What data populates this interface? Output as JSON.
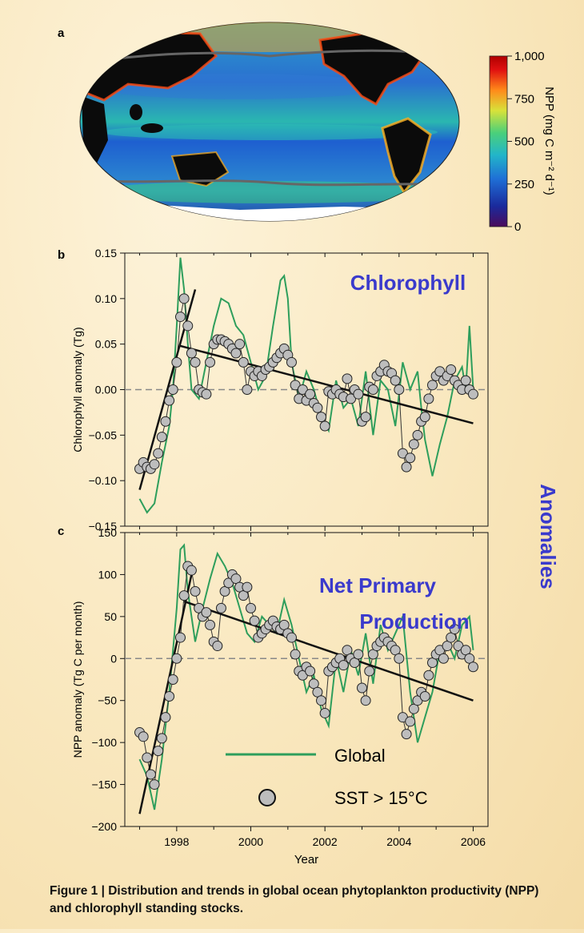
{
  "colors": {
    "global_line": "#2e9e5c",
    "sst_marker_fill": "#bdbdbd",
    "trend_line": "#111111",
    "zero_line": "#888888",
    "overlay_text": "#3a3acc"
  },
  "panel_a": {
    "letter": "a",
    "colorbar": {
      "label": "NPP (mg C m⁻² d⁻¹)",
      "ticks": [
        "1,000",
        "750",
        "500",
        "250",
        "0"
      ],
      "tick_values": [
        1000,
        750,
        500,
        250,
        0
      ],
      "range": [
        0,
        1000
      ],
      "colors": [
        "#4b0a5b",
        "#1a2a9c",
        "#1f6fd6",
        "#22b5c9",
        "#4bd07a",
        "#d8e23a",
        "#ff8a1a",
        "#e01010",
        "#b00000"
      ]
    }
  },
  "overlay": {
    "chlorophyll": "Chlorophyll",
    "npp_line1": "Net Primary",
    "npp_line2": "Production",
    "anomalies": "Anomalies"
  },
  "legend": {
    "global": "Global",
    "sst": "SST > 15°C"
  },
  "caption": {
    "bold": "Figure 1 | Distribution and trends in global ocean phytoplankton productivity (NPP) and chlorophyll standing stocks."
  },
  "chart_data": [
    {
      "type": "line",
      "panel": "b",
      "ylabel": "Chlorophyll anomaly (Tg)",
      "xlim": [
        1996.6,
        2006.4
      ],
      "ylim": [
        -0.15,
        0.15
      ],
      "yticks": [
        0.15,
        0.1,
        0.05,
        0.0,
        -0.05,
        -0.1,
        -0.15
      ],
      "ytick_labels": [
        "0.15",
        "0.10",
        "0.05",
        "0.00",
        "−0.05",
        "−0.10",
        "−0.15"
      ],
      "xticks": [
        1998,
        2000,
        2002,
        2004,
        2006
      ],
      "reference_line": 0,
      "series": [
        {
          "name": "Global",
          "kind": "line",
          "x": [
            1997.0,
            1997.2,
            1997.4,
            1997.6,
            1997.8,
            1997.9,
            1998.0,
            1998.1,
            1998.2,
            1998.3,
            1998.4,
            1998.6,
            1998.8,
            1999.0,
            1999.2,
            1999.4,
            1999.6,
            1999.8,
            2000.0,
            2000.2,
            2000.4,
            2000.6,
            2000.8,
            2000.9,
            2001.0,
            2001.1,
            2001.3,
            2001.5,
            2001.7,
            2001.9,
            2002.1,
            2002.3,
            2002.5,
            2002.7,
            2002.9,
            2003.1,
            2003.3,
            2003.5,
            2003.7,
            2003.9,
            2004.1,
            2004.3,
            2004.5,
            2004.6,
            2004.7,
            2004.9,
            2005.1,
            2005.3,
            2005.5,
            2005.7,
            2005.8,
            2005.9,
            2006.0
          ],
          "y": [
            -0.12,
            -0.135,
            -0.125,
            -0.08,
            -0.04,
            0.0,
            0.07,
            0.145,
            0.11,
            0.05,
            0.0,
            -0.01,
            0.03,
            0.07,
            0.1,
            0.095,
            0.07,
            0.06,
            0.03,
            0.0,
            0.015,
            0.07,
            0.12,
            0.125,
            0.1,
            0.03,
            -0.01,
            0.02,
            0.0,
            -0.03,
            -0.045,
            0.01,
            -0.02,
            -0.01,
            -0.04,
            0.02,
            -0.05,
            0.01,
            0.0,
            -0.04,
            0.03,
            0.0,
            0.02,
            -0.02,
            -0.055,
            -0.095,
            -0.06,
            -0.03,
            0.01,
            0.025,
            0.0,
            0.07,
            0.0
          ]
        },
        {
          "name": "SST > 15°C",
          "kind": "scatter",
          "x": [
            1997.0,
            1997.1,
            1997.2,
            1997.3,
            1997.4,
            1997.5,
            1997.6,
            1997.7,
            1997.8,
            1997.9,
            1998.0,
            1998.1,
            1998.2,
            1998.3,
            1998.4,
            1998.5,
            1998.6,
            1998.7,
            1998.8,
            1998.9,
            1999.0,
            1999.1,
            1999.2,
            1999.3,
            1999.4,
            1999.5,
            1999.6,
            1999.7,
            1999.8,
            1999.9,
            2000.0,
            2000.1,
            2000.2,
            2000.3,
            2000.4,
            2000.5,
            2000.6,
            2000.7,
            2000.8,
            2000.9,
            2001.0,
            2001.1,
            2001.2,
            2001.3,
            2001.4,
            2001.5,
            2001.6,
            2001.7,
            2001.8,
            2001.9,
            2002.0,
            2002.1,
            2002.2,
            2002.3,
            2002.4,
            2002.5,
            2002.6,
            2002.7,
            2002.8,
            2002.9,
            2003.0,
            2003.1,
            2003.2,
            2003.3,
            2003.4,
            2003.5,
            2003.6,
            2003.7,
            2003.8,
            2003.9,
            2004.0,
            2004.1,
            2004.2,
            2004.3,
            2004.4,
            2004.5,
            2004.6,
            2004.7,
            2004.8,
            2004.9,
            2005.0,
            2005.1,
            2005.2,
            2005.3,
            2005.4,
            2005.5,
            2005.6,
            2005.7,
            2005.8,
            2005.9,
            2006.0
          ],
          "y": [
            -0.087,
            -0.08,
            -0.085,
            -0.087,
            -0.082,
            -0.07,
            -0.052,
            -0.035,
            -0.012,
            0.0,
            0.03,
            0.08,
            0.1,
            0.07,
            0.04,
            0.03,
            0.0,
            -0.003,
            -0.005,
            0.03,
            0.05,
            0.055,
            0.055,
            0.053,
            0.05,
            0.045,
            0.04,
            0.05,
            0.03,
            0.0,
            0.02,
            0.015,
            0.02,
            0.015,
            0.022,
            0.025,
            0.03,
            0.035,
            0.04,
            0.045,
            0.038,
            0.03,
            0.005,
            -0.01,
            0.0,
            -0.012,
            -0.005,
            -0.015,
            -0.02,
            -0.03,
            -0.04,
            -0.002,
            -0.005,
            0.0,
            -0.005,
            -0.008,
            0.012,
            -0.01,
            0.0,
            -0.005,
            -0.035,
            -0.03,
            0.003,
            0.0,
            0.015,
            0.02,
            0.027,
            0.02,
            0.018,
            0.01,
            0.0,
            -0.07,
            -0.085,
            -0.075,
            -0.06,
            -0.05,
            -0.035,
            -0.03,
            -0.01,
            0.005,
            0.015,
            0.02,
            0.01,
            0.015,
            0.022,
            0.01,
            0.005,
            0.0,
            0.01,
            0.0,
            -0.005
          ]
        }
      ],
      "trend_lines": [
        {
          "x": [
            1997.0,
            1998.5
          ],
          "y": [
            -0.11,
            0.11
          ]
        },
        {
          "x": [
            1998.1,
            2006.0
          ],
          "y": [
            0.048,
            -0.037
          ]
        }
      ]
    },
    {
      "type": "line",
      "panel": "c",
      "ylabel": "NPP anomaly (Tg C per month)",
      "xlabel": "Year",
      "xlim": [
        1996.6,
        2006.4
      ],
      "ylim": [
        -200,
        150
      ],
      "yticks": [
        150,
        100,
        50,
        0,
        -50,
        -100,
        -150,
        -200
      ],
      "ytick_labels": [
        "150",
        "100",
        "50",
        "0",
        "−50",
        "−100",
        "−150",
        "−200"
      ],
      "xticks": [
        1998,
        2000,
        2002,
        2004,
        2006
      ],
      "xtick_labels": [
        "1998",
        "2000",
        "2002",
        "2004",
        "2006"
      ],
      "reference_line": 0,
      "series": [
        {
          "name": "Global",
          "kind": "line",
          "x": [
            1997.0,
            1997.2,
            1997.4,
            1997.6,
            1997.8,
            1998.0,
            1998.1,
            1998.2,
            1998.3,
            1998.5,
            1998.7,
            1998.9,
            1999.1,
            1999.3,
            1999.5,
            1999.7,
            1999.9,
            2000.1,
            2000.3,
            2000.5,
            2000.7,
            2000.9,
            2001.1,
            2001.3,
            2001.5,
            2001.7,
            2001.9,
            2002.1,
            2002.3,
            2002.5,
            2002.7,
            2002.9,
            2003.1,
            2003.3,
            2003.5,
            2003.7,
            2003.9,
            2004.1,
            2004.3,
            2004.5,
            2004.7,
            2004.9,
            2005.1,
            2005.3,
            2005.5,
            2005.7,
            2005.9,
            2006.0
          ],
          "y": [
            -120,
            -140,
            -180,
            -120,
            -40,
            60,
            130,
            135,
            80,
            20,
            60,
            95,
            125,
            110,
            90,
            60,
            30,
            20,
            50,
            40,
            30,
            70,
            40,
            0,
            -40,
            -20,
            -60,
            -80,
            0,
            -40,
            10,
            -20,
            30,
            -30,
            40,
            10,
            30,
            50,
            -40,
            -100,
            -70,
            -40,
            10,
            20,
            0,
            40,
            50,
            10
          ]
        },
        {
          "name": "SST > 15°C",
          "kind": "scatter",
          "x": [
            1997.0,
            1997.1,
            1997.2,
            1997.3,
            1997.4,
            1997.5,
            1997.6,
            1997.7,
            1997.8,
            1997.9,
            1998.0,
            1998.1,
            1998.2,
            1998.3,
            1998.4,
            1998.5,
            1998.6,
            1998.7,
            1998.8,
            1998.9,
            1999.0,
            1999.1,
            1999.2,
            1999.3,
            1999.4,
            1999.5,
            1999.6,
            1999.7,
            1999.8,
            1999.9,
            2000.0,
            2000.1,
            2000.2,
            2000.3,
            2000.4,
            2000.5,
            2000.6,
            2000.7,
            2000.8,
            2000.9,
            2001.0,
            2001.1,
            2001.2,
            2001.3,
            2001.4,
            2001.5,
            2001.6,
            2001.7,
            2001.8,
            2001.9,
            2002.0,
            2002.1,
            2002.2,
            2002.3,
            2002.4,
            2002.5,
            2002.6,
            2002.7,
            2002.8,
            2002.9,
            2003.0,
            2003.1,
            2003.2,
            2003.3,
            2003.4,
            2003.5,
            2003.6,
            2003.7,
            2003.8,
            2003.9,
            2004.0,
            2004.1,
            2004.2,
            2004.3,
            2004.4,
            2004.5,
            2004.6,
            2004.7,
            2004.8,
            2004.9,
            2005.0,
            2005.1,
            2005.2,
            2005.3,
            2005.4,
            2005.5,
            2005.6,
            2005.7,
            2005.8,
            2005.9,
            2006.0
          ],
          "y": [
            -88,
            -93,
            -118,
            -138,
            -150,
            -110,
            -95,
            -70,
            -45,
            -25,
            0,
            25,
            75,
            110,
            105,
            80,
            60,
            50,
            55,
            40,
            20,
            15,
            60,
            80,
            90,
            100,
            95,
            85,
            75,
            85,
            60,
            45,
            25,
            30,
            35,
            40,
            45,
            38,
            35,
            40,
            30,
            25,
            5,
            -15,
            -20,
            -10,
            -15,
            -30,
            -40,
            -50,
            -65,
            -15,
            -10,
            -5,
            0,
            -8,
            10,
            0,
            -5,
            5,
            -35,
            -50,
            -15,
            5,
            15,
            20,
            25,
            20,
            15,
            10,
            0,
            -70,
            -90,
            -75,
            -60,
            -50,
            -40,
            -45,
            -20,
            -5,
            5,
            10,
            0,
            15,
            25,
            35,
            15,
            5,
            10,
            0,
            -10
          ]
        }
      ],
      "trend_lines": [
        {
          "x": [
            1997.0,
            1998.4
          ],
          "y": [
            -185,
            100
          ]
        },
        {
          "x": [
            1998.2,
            2006.0
          ],
          "y": [
            68,
            -50
          ]
        }
      ]
    }
  ]
}
